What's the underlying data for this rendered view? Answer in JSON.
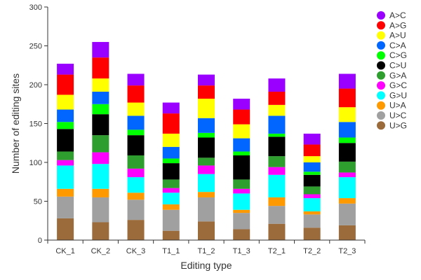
{
  "chart_data": {
    "type": "bar",
    "stacked": true,
    "title": "",
    "xlabel": "Editing type",
    "ylabel": "Number of editing sites",
    "ylim": [
      0,
      300
    ],
    "yticks": [
      0,
      50,
      100,
      150,
      200,
      250,
      300
    ],
    "grid": false,
    "legend_position": "right",
    "categories": [
      "CK_1",
      "CK_2",
      "CK_3",
      "T1_1",
      "T1_2",
      "T1_3",
      "T2_1",
      "T2_2",
      "T2_3"
    ],
    "series": [
      {
        "name": "U>G",
        "color": "#9c6b3b",
        "values": [
          28,
          23,
          26,
          12,
          24,
          14,
          21,
          16,
          19
        ]
      },
      {
        "name": "U>C",
        "color": "#a0a0a0",
        "values": [
          28,
          32,
          26,
          27,
          31,
          21,
          23,
          17,
          28
        ]
      },
      {
        "name": "U>A",
        "color": "#ff9900",
        "values": [
          10,
          11,
          9,
          7,
          7,
          4,
          11,
          4,
          7
        ]
      },
      {
        "name": "G>U",
        "color": "#00ffff",
        "values": [
          30,
          32,
          20,
          15,
          23,
          21,
          29,
          17,
          27
        ]
      },
      {
        "name": "G>C",
        "color": "#ff00ff",
        "values": [
          7,
          15,
          11,
          6,
          11,
          6,
          10,
          5,
          6
        ]
      },
      {
        "name": "G>A",
        "color": "#2e9e2e",
        "values": [
          11,
          22,
          17,
          11,
          10,
          12,
          14,
          10,
          14
        ]
      },
      {
        "name": "C>U",
        "color": "#000000",
        "values": [
          29,
          27,
          26,
          21,
          26,
          31,
          25,
          15,
          24
        ]
      },
      {
        "name": "C>G",
        "color": "#00ff00",
        "values": [
          9,
          13,
          7,
          6,
          6,
          5,
          4,
          4,
          7
        ]
      },
      {
        "name": "C>A",
        "color": "#0066ff",
        "values": [
          16,
          16,
          18,
          15,
          19,
          17,
          23,
          12,
          20
        ]
      },
      {
        "name": "A>U",
        "color": "#ffff00",
        "values": [
          19,
          17,
          17,
          17,
          25,
          18,
          14,
          8,
          19
        ]
      },
      {
        "name": "A>G",
        "color": "#ff0000",
        "values": [
          26,
          27,
          22,
          26,
          17,
          19,
          17,
          15,
          24
        ]
      },
      {
        "name": "A>C",
        "color": "#9900ff",
        "values": [
          14,
          20,
          15,
          14,
          14,
          14,
          17,
          14,
          19
        ]
      }
    ],
    "legend_order": [
      "A>C",
      "A>G",
      "A>U",
      "C>A",
      "C>G",
      "C>U",
      "G>A",
      "G>C",
      "G>U",
      "U>A",
      "U>C",
      "U>G"
    ]
  }
}
